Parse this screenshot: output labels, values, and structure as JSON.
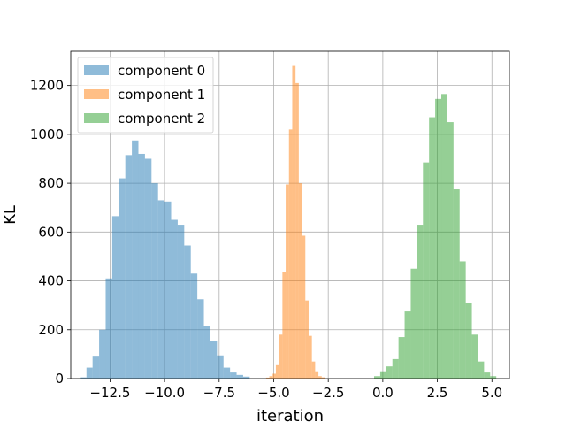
{
  "chart_data": {
    "type": "histogram",
    "title": "",
    "xlabel": "iteration",
    "ylabel": "KL",
    "xlim": [
      -14.3,
      5.8
    ],
    "ylim": [
      0,
      1340
    ],
    "xticks": [
      -12.5,
      -10.0,
      -7.5,
      -5.0,
      -2.5,
      0.0,
      2.5,
      5.0
    ],
    "xtick_labels": [
      "−12.5",
      "−10.0",
      "−7.5",
      "−5.0",
      "−2.5",
      "0.0",
      "2.5",
      "5.0"
    ],
    "yticks": [
      0,
      200,
      400,
      600,
      800,
      1000,
      1200
    ],
    "ytick_labels": [
      "0",
      "200",
      "400",
      "600",
      "800",
      "1000",
      "1200"
    ],
    "grid": true,
    "legend_position": "top-left",
    "alpha": 0.5,
    "series": [
      {
        "name": "component 0",
        "color": "#1f77b4",
        "bins": [
          [
            -13.84,
            -13.58,
            5
          ],
          [
            -13.58,
            -13.3,
            45
          ],
          [
            -13.3,
            -13.0,
            90
          ],
          [
            -13.0,
            -12.7,
            200
          ],
          [
            -12.7,
            -12.4,
            410
          ],
          [
            -12.4,
            -12.1,
            665
          ],
          [
            -12.1,
            -11.8,
            820
          ],
          [
            -11.8,
            -11.5,
            915
          ],
          [
            -11.5,
            -11.2,
            975
          ],
          [
            -11.2,
            -10.9,
            920
          ],
          [
            -10.9,
            -10.6,
            900
          ],
          [
            -10.6,
            -10.3,
            800
          ],
          [
            -10.3,
            -10.0,
            730
          ],
          [
            -10.0,
            -9.7,
            725
          ],
          [
            -9.7,
            -9.4,
            650
          ],
          [
            -9.4,
            -9.1,
            630
          ],
          [
            -9.1,
            -8.8,
            545
          ],
          [
            -8.8,
            -8.5,
            430
          ],
          [
            -8.5,
            -8.2,
            325
          ],
          [
            -8.2,
            -7.9,
            215
          ],
          [
            -7.9,
            -7.6,
            155
          ],
          [
            -7.6,
            -7.3,
            95
          ],
          [
            -7.3,
            -7.0,
            45
          ],
          [
            -7.0,
            -6.7,
            25
          ],
          [
            -6.7,
            -6.4,
            15
          ],
          [
            -6.4,
            -6.1,
            8
          ]
        ]
      },
      {
        "name": "component 1",
        "color": "#ff7f0e",
        "bins": [
          [
            -5.35,
            -5.2,
            4
          ],
          [
            -5.2,
            -5.05,
            10
          ],
          [
            -5.05,
            -4.9,
            20
          ],
          [
            -4.9,
            -4.75,
            55
          ],
          [
            -4.75,
            -4.6,
            180
          ],
          [
            -4.6,
            -4.45,
            435
          ],
          [
            -4.45,
            -4.3,
            795
          ],
          [
            -4.3,
            -4.15,
            1020
          ],
          [
            -4.15,
            -4.0,
            1280
          ],
          [
            -4.0,
            -3.85,
            1210
          ],
          [
            -3.85,
            -3.7,
            800
          ],
          [
            -3.7,
            -3.55,
            585
          ],
          [
            -3.55,
            -3.4,
            320
          ],
          [
            -3.4,
            -3.25,
            175
          ],
          [
            -3.25,
            -3.1,
            70
          ],
          [
            -3.1,
            -2.95,
            30
          ],
          [
            -2.95,
            -2.8,
            10
          ],
          [
            -2.8,
            -2.65,
            5
          ]
        ]
      },
      {
        "name": "component 2",
        "color": "#2ca02c",
        "bins": [
          [
            -0.4,
            -0.12,
            10
          ],
          [
            -0.12,
            0.16,
            30
          ],
          [
            0.16,
            0.44,
            50
          ],
          [
            0.44,
            0.72,
            80
          ],
          [
            0.72,
            1.0,
            170
          ],
          [
            1.0,
            1.28,
            275
          ],
          [
            1.28,
            1.56,
            450
          ],
          [
            1.56,
            1.84,
            630
          ],
          [
            1.84,
            2.12,
            885
          ],
          [
            2.12,
            2.4,
            1070
          ],
          [
            2.4,
            2.68,
            1145
          ],
          [
            2.68,
            2.96,
            1165
          ],
          [
            2.96,
            3.24,
            1050
          ],
          [
            3.24,
            3.52,
            775
          ],
          [
            3.52,
            3.8,
            480
          ],
          [
            3.8,
            4.08,
            310
          ],
          [
            4.08,
            4.36,
            180
          ],
          [
            4.36,
            4.64,
            70
          ],
          [
            4.64,
            4.92,
            25
          ],
          [
            4.92,
            5.2,
            10
          ]
        ]
      }
    ]
  }
}
